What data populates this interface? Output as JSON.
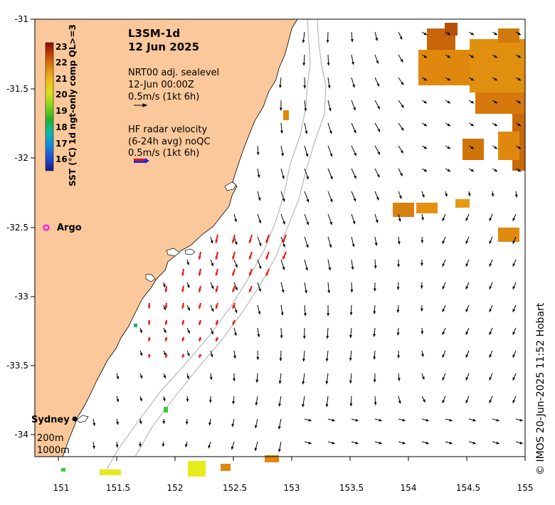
{
  "title": {
    "product": "L3SM-1d",
    "date": "12 Jun 2025"
  },
  "legend": {
    "sealevel_title": "NRT00 adj. sealevel",
    "sealevel_time": "12-Jun 00:00Z",
    "sealevel_scale": "0.5m/s (1kt 6h)",
    "radar_title": "HF radar velocity",
    "radar_avg": "(6-24h avg) noQC",
    "radar_scale": "0.5m/s (1kt 6h)"
  },
  "colorbar": {
    "label": "SST (°C) 1d ngt-only comp QL>=3",
    "ticks": [
      "23",
      "22",
      "21",
      "20",
      "19",
      "18",
      "17",
      "16"
    ],
    "colors": [
      "#8b0a00",
      "#c24a08",
      "#e08b14",
      "#f0c020",
      "#d8e020",
      "#7fd21a",
      "#20b42a",
      "#10b6a8",
      "#148ce0",
      "#1f4fd0",
      "#1a1a8c"
    ]
  },
  "axes": {
    "x_ticks": [
      "151",
      "151.5",
      "152",
      "152.5",
      "153",
      "153.5",
      "154",
      "154.5",
      "155"
    ],
    "y_ticks": [
      "-31",
      "-31.5",
      "-32",
      "-32.5",
      "-33",
      "-33.5",
      "-34"
    ],
    "lon_range": [
      150.78,
      155.0
    ],
    "lat_range": [
      -34.3,
      -31.0
    ]
  },
  "places": {
    "sydney": "Sydney",
    "argo": "Argo",
    "isobath_200": "200m",
    "isobath_1000": "1000m"
  },
  "credit": "© IMOS 20-Jun-2025 11:52 Hobart",
  "colors": {
    "land": "#fac89a",
    "radar_arrow": "#ee1111",
    "model_arrow": "#000000",
    "argo_marker": "#ff00ff",
    "sst_warm": "#e0880e",
    "sst_yellow": "#e6ec1c",
    "sst_green": "#3ec83a"
  }
}
